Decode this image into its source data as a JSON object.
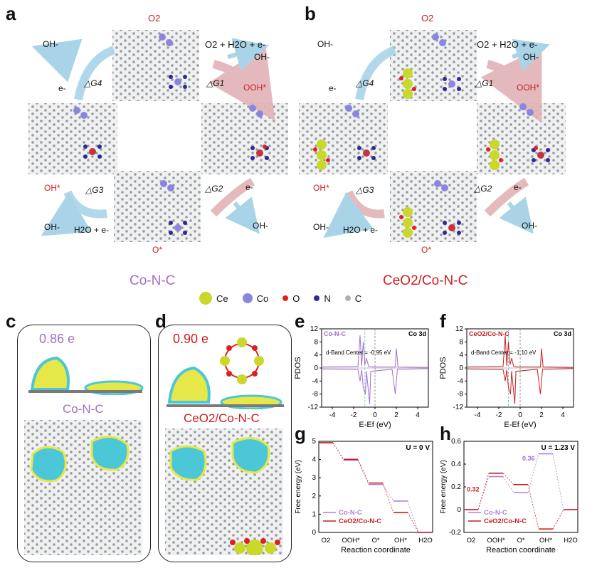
{
  "panels": {
    "a": {
      "letter": "a",
      "caption": "Co-N-C",
      "o2": "O2",
      "o2_reaction": "O2 + H2O + e-",
      "oh_minus_1": "OH-",
      "oh_minus_top": "OH-",
      "e_minus_left": "e-",
      "dg4": "△G4",
      "dg1": "△G1",
      "ooh": "OOH*",
      "oh_star": "OH*",
      "dg3": "△G3",
      "dg2": "△G2",
      "e_minus_right": "e-",
      "oh_minus_bottom_left": "OH-",
      "h2o_e": "H2O + e-",
      "o_star": "O*",
      "oh_minus_bottom_right": "OH-"
    },
    "b": {
      "letter": "b",
      "caption": "CeO2/Co-N-C",
      "o2": "O2",
      "o2_reaction": "O2 + H2O + e-",
      "oh_minus_1": "OH-",
      "oh_minus_top": "OH-",
      "e_minus_left": "e-",
      "dg4": "△G4",
      "dg1": "△G1",
      "ooh": "OOH*",
      "oh_star": "OH*",
      "dg3": "△G3",
      "dg2": "△G2",
      "e_minus_right": "e-",
      "oh_minus_bottom_left": "OH-",
      "h2o_e": "H2O + e-",
      "o_star": "O*",
      "oh_minus_bottom_right": "OH-"
    }
  },
  "legend": {
    "items": [
      {
        "name": "Ce",
        "color": "#c9d82a"
      },
      {
        "name": "Co",
        "color": "#8a86e0"
      },
      {
        "name": "O",
        "color": "#e02020"
      },
      {
        "name": "N",
        "color": "#2a2a9a"
      },
      {
        "name": "C",
        "color": "#b0b0b0"
      }
    ]
  },
  "panel_c": {
    "letter": "c",
    "charge": "0.86 e",
    "label": "Co-N-C"
  },
  "panel_d": {
    "letter": "d",
    "charge": "0.90 e",
    "label": "CeO2/Co-N-C"
  },
  "chart_data": [
    {
      "id": "e",
      "type": "line",
      "letter": "e",
      "title": "Co 3d",
      "legend": "Co-N-C",
      "annotation": "d-Band Center = -0.95 eV",
      "xlabel": "E-Ef (eV)",
      "ylabel": "PDOS",
      "xlim": [
        -5,
        5
      ],
      "ylim": [
        -12,
        12
      ],
      "xticks": [
        -4,
        -2,
        0,
        2,
        4
      ],
      "yticks": [
        -12,
        -8,
        -4,
        0,
        4,
        8,
        12
      ],
      "color": "#a070c8",
      "dband": -0.95
    },
    {
      "id": "f",
      "type": "line",
      "letter": "f",
      "title": "Co 3d",
      "legend": "CeO2/Co-N-C",
      "annotation": "d-Band Center = -1.10 eV",
      "xlabel": "E-Ef (eV)",
      "ylabel": "PDOS",
      "xlim": [
        -5,
        5
      ],
      "ylim": [
        -12,
        12
      ],
      "xticks": [
        -4,
        -2,
        0,
        2,
        4
      ],
      "yticks": [
        -12,
        -8,
        -4,
        0,
        4,
        8,
        12
      ],
      "color": "#c81e1e",
      "dband": -1.1
    },
    {
      "id": "g",
      "type": "line",
      "letter": "g",
      "title": "U = 0 V",
      "xlabel": "Reaction coordinate",
      "ylabel": "Free energy (eV)",
      "categories": [
        "O2",
        "OOH*",
        "O*",
        "OH*",
        "H2O"
      ],
      "ylim": [
        0,
        5
      ],
      "yticks": [
        0,
        1,
        2,
        3,
        4,
        5
      ],
      "series": [
        {
          "name": "Co-N-C",
          "color": "#b080d8",
          "values": [
            4.92,
            3.95,
            2.63,
            1.72,
            0
          ]
        },
        {
          "name": "CeO2/Co-N-C",
          "color": "#c81e1e",
          "values": [
            4.92,
            4.01,
            2.71,
            1.09,
            0
          ]
        }
      ]
    },
    {
      "id": "h",
      "type": "line",
      "letter": "h",
      "title": "U = 1.23 V",
      "xlabel": "Reaction coordinate",
      "ylabel": "Free energy (eV)",
      "categories": [
        "O2",
        "OOH*",
        "O*",
        "OH*",
        "H2O"
      ],
      "ylim": [
        -0.2,
        0.6
      ],
      "yticks": [
        -0.2,
        0.0,
        0.2,
        0.4,
        0.6
      ],
      "annotations": [
        "0.32",
        "0.36"
      ],
      "series": [
        {
          "name": "Co-N-C",
          "color": "#b080d8",
          "values": [
            0,
            0.29,
            0.15,
            0.49,
            0
          ]
        },
        {
          "name": "CeO2/Co-N-C",
          "color": "#c81e1e",
          "values": [
            0,
            0.32,
            0.22,
            -0.17,
            0
          ]
        }
      ]
    }
  ]
}
